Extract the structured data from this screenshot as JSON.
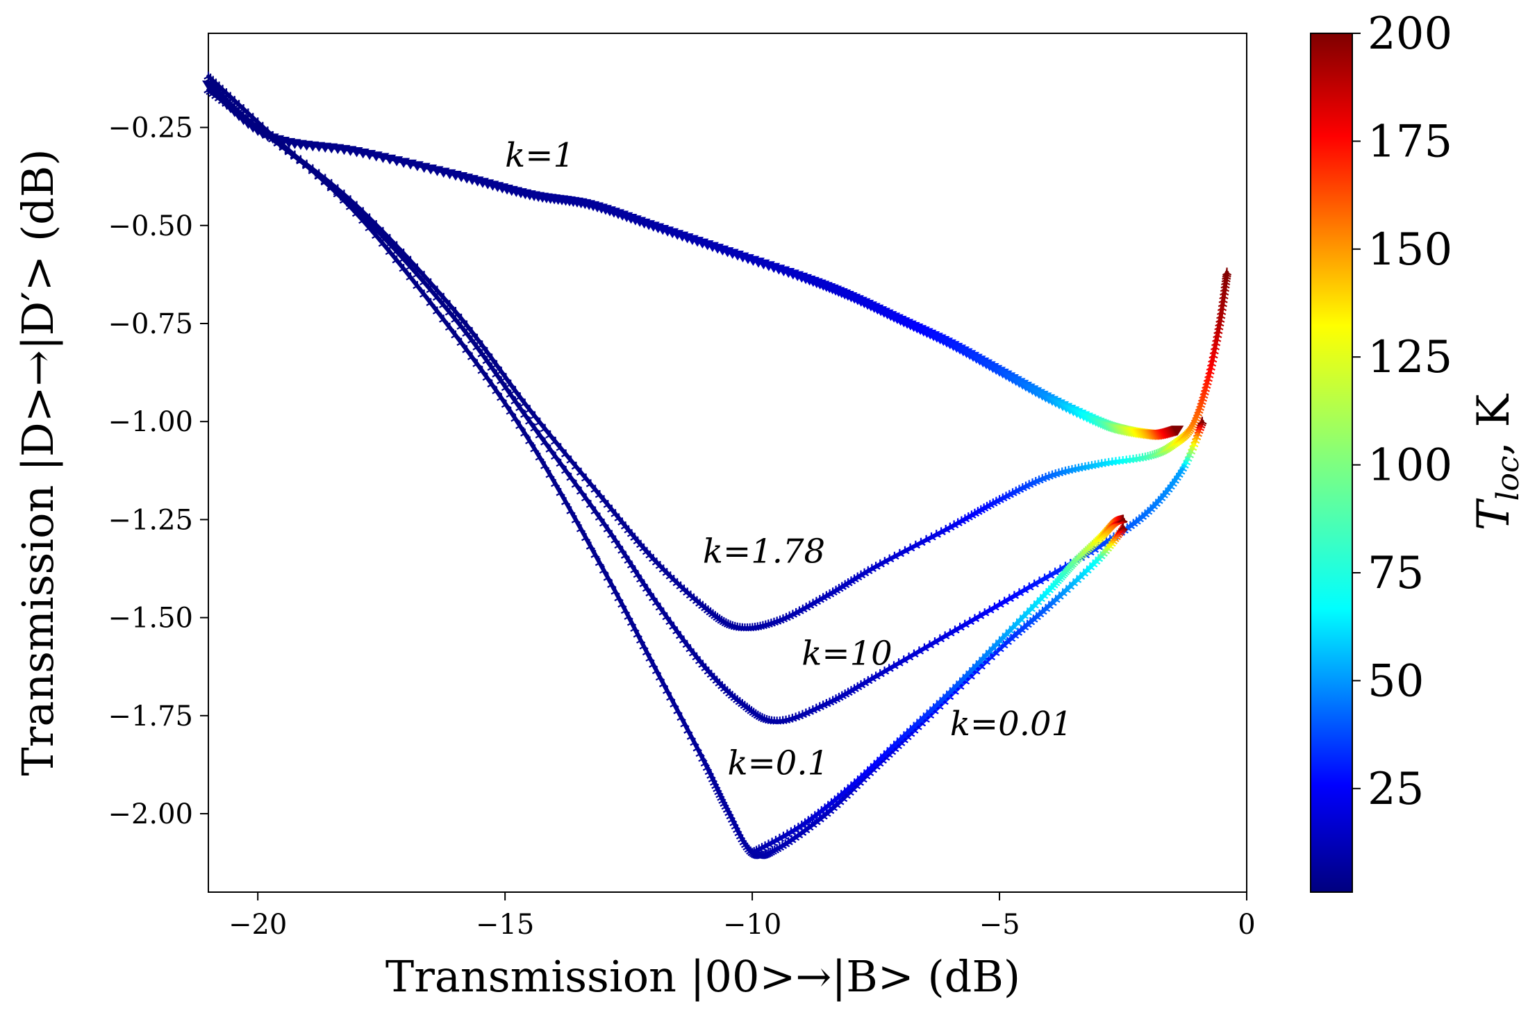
{
  "chart_data": {
    "type": "line",
    "title": "",
    "xlabel": "Transmission |00>→|B> (dB)",
    "ylabel": "Transmission |D>→|D′> (dB)",
    "xlim": [
      -21,
      0
    ],
    "ylim": [
      -2.2,
      -0.01
    ],
    "xticks": [
      -20,
      -15,
      -10,
      -5,
      0
    ],
    "xtick_labels": [
      "−20",
      "−15",
      "−10",
      "−5",
      "0"
    ],
    "yticks": [
      -0.25,
      -0.5,
      -0.75,
      -1.0,
      -1.25,
      -1.5,
      -1.75,
      -2.0
    ],
    "ytick_labels": [
      "−0.25",
      "−0.50",
      "−0.75",
      "−1.00",
      "−1.25",
      "−1.50",
      "−1.75",
      "−2.00"
    ],
    "grid": false,
    "colorbar": {
      "label_main": "T",
      "label_sub": "loc",
      "label_suffix": ", K",
      "range": [
        1,
        200
      ],
      "ticks": [
        25,
        50,
        75,
        100,
        125,
        150,
        175,
        200
      ],
      "tick_labels": [
        "25",
        "50",
        "75",
        "100",
        "125",
        "150",
        "175",
        "200"
      ],
      "colormap": "jet"
    },
    "series": [
      {
        "name": "k=1",
        "marker": "triangle-down",
        "label_pos": [
          -15.0,
          -0.35
        ],
        "points": [
          [
            -21.0,
            -0.14,
            1
          ],
          [
            -19.8,
            -0.27,
            2
          ],
          [
            -18.0,
            -0.31,
            3
          ],
          [
            -16.0,
            -0.37,
            4
          ],
          [
            -14.5,
            -0.42,
            5
          ],
          [
            -13.3,
            -0.445,
            6
          ],
          [
            -12.0,
            -0.5,
            8
          ],
          [
            -10.5,
            -0.565,
            11
          ],
          [
            -9.0,
            -0.63,
            15
          ],
          [
            -8.0,
            -0.68,
            18
          ],
          [
            -7.0,
            -0.74,
            23
          ],
          [
            -6.0,
            -0.8,
            30
          ],
          [
            -5.0,
            -0.87,
            40
          ],
          [
            -4.0,
            -0.94,
            55
          ],
          [
            -3.0,
            -1.0,
            85
          ],
          [
            -2.5,
            -1.02,
            110
          ],
          [
            -2.0,
            -1.03,
            140
          ],
          [
            -1.7,
            -1.03,
            170
          ],
          [
            -1.4,
            -1.02,
            200
          ]
        ]
      },
      {
        "name": "k=1.78",
        "marker": "tri",
        "label_pos": [
          -11.0,
          -1.36
        ],
        "points": [
          [
            -21.0,
            -0.155,
            1
          ],
          [
            -19.8,
            -0.27,
            1
          ],
          [
            -18.0,
            -0.45,
            2
          ],
          [
            -16.0,
            -0.72,
            2
          ],
          [
            -14.5,
            -0.97,
            3
          ],
          [
            -13.0,
            -1.2,
            4
          ],
          [
            -12.0,
            -1.35,
            5
          ],
          [
            -11.0,
            -1.47,
            6
          ],
          [
            -10.3,
            -1.525,
            7
          ],
          [
            -9.5,
            -1.51,
            9
          ],
          [
            -8.5,
            -1.445,
            12
          ],
          [
            -7.5,
            -1.37,
            15
          ],
          [
            -6.0,
            -1.27,
            22
          ],
          [
            -5.0,
            -1.2,
            30
          ],
          [
            -4.0,
            -1.14,
            45
          ],
          [
            -3.0,
            -1.11,
            65
          ],
          [
            -2.0,
            -1.09,
            90
          ],
          [
            -1.5,
            -1.06,
            120
          ],
          [
            -1.1,
            -1.01,
            150
          ],
          [
            -0.8,
            -0.9,
            170
          ],
          [
            -0.55,
            -0.75,
            190
          ],
          [
            -0.4,
            -0.62,
            200
          ]
        ]
      },
      {
        "name": "k=10",
        "marker": "tri",
        "label_pos": [
          -9.0,
          -1.62
        ],
        "points": [
          [
            -21.0,
            -0.155,
            1
          ],
          [
            -19.8,
            -0.27,
            1
          ],
          [
            -18.0,
            -0.46,
            2
          ],
          [
            -16.0,
            -0.74,
            2
          ],
          [
            -14.5,
            -1.0,
            3
          ],
          [
            -13.0,
            -1.26,
            4
          ],
          [
            -12.0,
            -1.45,
            5
          ],
          [
            -11.0,
            -1.62,
            6
          ],
          [
            -10.2,
            -1.72,
            7
          ],
          [
            -9.5,
            -1.765,
            8
          ],
          [
            -8.5,
            -1.72,
            11
          ],
          [
            -7.5,
            -1.65,
            14
          ],
          [
            -6.0,
            -1.54,
            20
          ],
          [
            -4.5,
            -1.43,
            28
          ],
          [
            -3.0,
            -1.32,
            38
          ],
          [
            -2.0,
            -1.23,
            48
          ],
          [
            -1.3,
            -1.12,
            58
          ],
          [
            -0.9,
            -1.0,
            200
          ]
        ]
      },
      {
        "name": "k=0.1",
        "marker": "tri",
        "label_pos": [
          -10.5,
          -1.9
        ],
        "points": [
          [
            -21.0,
            -0.12,
            1
          ],
          [
            -19.8,
            -0.26,
            1
          ],
          [
            -18.0,
            -0.47,
            2
          ],
          [
            -16.0,
            -0.78,
            2
          ],
          [
            -14.5,
            -1.05,
            3
          ],
          [
            -13.0,
            -1.38,
            4
          ],
          [
            -12.0,
            -1.62,
            5
          ],
          [
            -11.0,
            -1.86,
            6
          ],
          [
            -10.5,
            -1.99,
            7
          ],
          [
            -10.0,
            -2.1,
            8
          ],
          [
            -9.5,
            -2.09,
            10
          ],
          [
            -8.5,
            -2.0,
            13
          ],
          [
            -7.5,
            -1.88,
            17
          ],
          [
            -6.5,
            -1.76,
            22
          ],
          [
            -5.0,
            -1.58,
            32
          ],
          [
            -4.0,
            -1.47,
            45
          ],
          [
            -3.0,
            -1.35,
            80
          ],
          [
            -2.5,
            -1.27,
            200
          ]
        ]
      },
      {
        "name": "k=0.01",
        "marker": "tri",
        "label_pos": [
          -6.0,
          -1.8
        ],
        "points": [
          [
            -10.0,
            -2.1,
            8
          ],
          [
            -9.0,
            -2.03,
            15
          ],
          [
            -8.0,
            -1.93,
            22
          ],
          [
            -7.0,
            -1.81,
            30
          ],
          [
            -6.0,
            -1.69,
            40
          ],
          [
            -5.0,
            -1.56,
            55
          ],
          [
            -4.0,
            -1.43,
            75
          ],
          [
            -3.5,
            -1.36,
            95
          ],
          [
            -3.0,
            -1.3,
            125
          ],
          [
            -2.7,
            -1.26,
            160
          ],
          [
            -2.5,
            -1.25,
            200
          ]
        ]
      }
    ]
  }
}
